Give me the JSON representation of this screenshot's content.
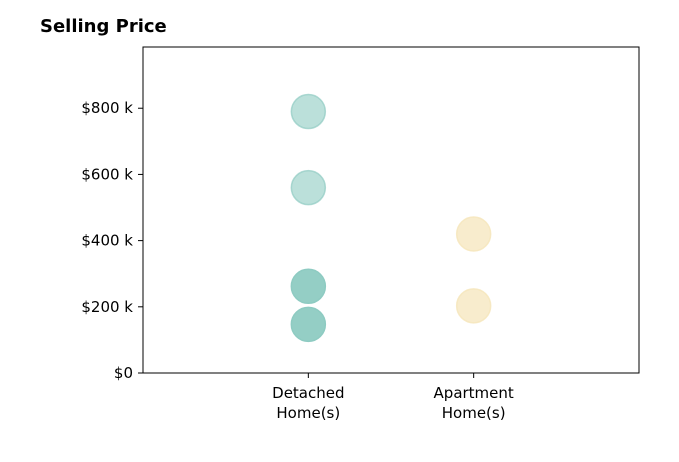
{
  "chart_data": {
    "type": "scatter",
    "title": "Selling Price",
    "categories": [
      "Detached\nHome(s)",
      "Apartment\nHome(s)"
    ],
    "yticks": [
      "$0",
      "$200 k",
      "$400 k",
      "$600 k",
      "$800 k"
    ],
    "ytick_values": [
      0,
      200000,
      400000,
      600000,
      800000
    ],
    "ylim": [
      0,
      985000
    ],
    "xlim": [
      0,
      3
    ],
    "grid": false,
    "series": [
      {
        "category": "Detached\nHome(s)",
        "color": "#8ecbc2",
        "points": [
          {
            "y": 790000,
            "alpha": 0.6
          },
          {
            "y": 560000,
            "alpha": 0.6
          },
          {
            "y": 262000,
            "alpha": 0.95
          },
          {
            "y": 147000,
            "alpha": 0.95
          }
        ]
      },
      {
        "category": "Apartment\nHome(s)",
        "color": "#f6e6bc",
        "points": [
          {
            "y": 420000,
            "alpha": 0.75
          },
          {
            "y": 203000,
            "alpha": 0.75
          }
        ]
      }
    ]
  }
}
